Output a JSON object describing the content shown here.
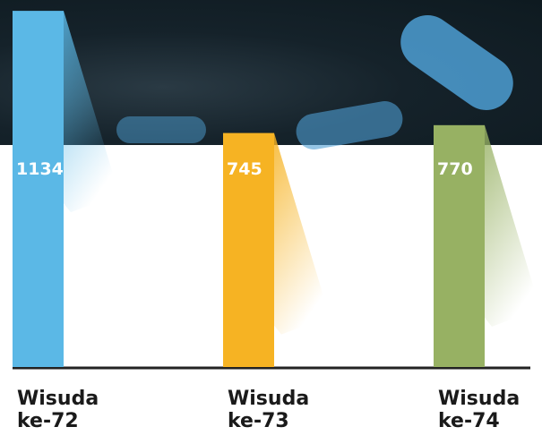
{
  "chart_data": {
    "type": "bar",
    "categories": [
      "Wisuda ke-72",
      "Wisuda ke-73",
      "Wisuda ke-74"
    ],
    "values": [
      1134,
      745,
      770
    ],
    "colors": [
      "#5bb8e6",
      "#f6b323",
      "#97b163"
    ],
    "ylim": [
      0,
      1140
    ]
  }
}
